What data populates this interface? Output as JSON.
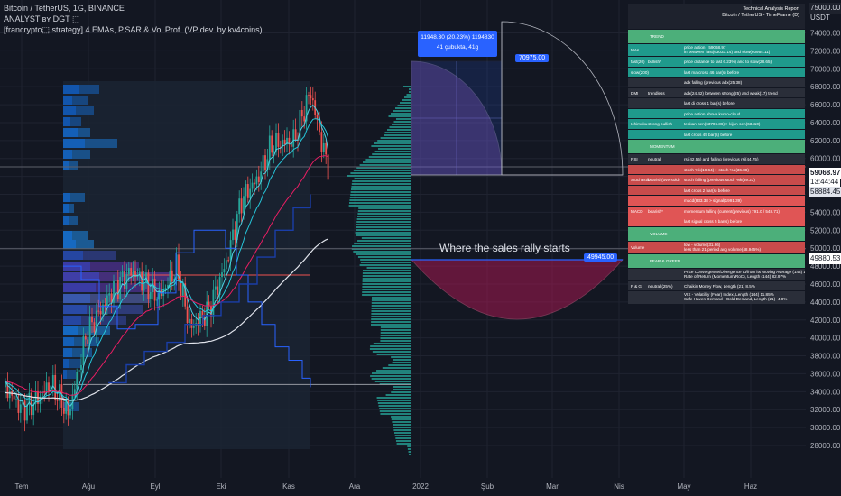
{
  "header": {
    "line1": "Bitcoin / TetherUS, 1G, BINANCE",
    "line2": "ANALYST ʙʏ DGT ⬚",
    "line3": "[francrypto⬚ strategy] 4 EMAs, P.SAR & Vol.Prof. (VP dev. by kv4coins)"
  },
  "axis": {
    "currency": "USDT",
    "y_ticks": [
      "74000.00",
      "72000.00",
      "70000.00",
      "68000.00",
      "66000.00",
      "64000.00",
      "62000.00",
      "60000.00",
      "58000.00",
      "56000.00",
      "54000.00",
      "52000.00",
      "50000.00",
      "48000.00",
      "46000.00",
      "44000.00",
      "42000.00",
      "40000.00",
      "38000.00",
      "36000.00",
      "34000.00",
      "32000.00",
      "30000.00",
      "28000.00"
    ],
    "x_ticks": [
      "Tem",
      "Ağu",
      "Eyl",
      "Eki",
      "Kas",
      "Ara",
      "2022",
      "Şub",
      "Mar",
      "Nis",
      "May",
      "Haz"
    ]
  },
  "price_tags": {
    "last_price": "59068.97",
    "countdown": "13:44:44",
    "ema_value": "58884.45",
    "level_value": "49880.53",
    "top_tag": "75000.00"
  },
  "measure_box": {
    "line1": "11948.30 (20.23%) 1194830",
    "line2": "41 çubukta, 41g"
  },
  "labels": {
    "target": "70975.00",
    "level": "49945.00",
    "annotation": "Where the sales rally starts"
  },
  "colors": {
    "bg": "#131722",
    "up": "#26a69a",
    "down": "#ef5350",
    "profile": "#26a69a",
    "ema_white": "#e0e3eb",
    "ema_pink": "#e91e63",
    "ema_cyan": "#4dd0e1",
    "sar_blue": "#2962ff"
  },
  "chart_data": {
    "type": "candlestick",
    "symbol": "Bitcoin / TetherUS",
    "interval": "1G",
    "ylim": [
      28000,
      76000
    ],
    "points": [
      {
        "x": "Tem",
        "y": 34500
      },
      {
        "x": "Ağu",
        "y": 40500
      },
      {
        "x": "Eyl",
        "y": 47000
      },
      {
        "x": "Eki",
        "y": 43000
      },
      {
        "x": "Kas",
        "y": 62000
      },
      {
        "x": "Kas",
        "y": 67500
      },
      {
        "x": "Kas",
        "y": 59068.97
      }
    ],
    "levels": [
      70975.0,
      49945.0
    ]
  },
  "report": {
    "title_line1": "Technical Analysis Report",
    "title_line2": "Bitcoin / TetherUS - TimeFrame (D)",
    "rows": [
      {
        "c1": "",
        "c2": "TREND",
        "c3": "",
        "color": "#4caf7a"
      },
      {
        "c1": "MAs",
        "c2": "",
        "c3": "price action : 59068.97",
        "c3b": "in between 'fast(63033.14) and slow(60954.11)",
        "color": "#1f9a8c"
      },
      {
        "c1": "fast(20)",
        "c2": "bullish*",
        "c3": "price distance to fast 6.23%) and to slow(28.65)",
        "color": "#1f9a8c"
      },
      {
        "c1": "slow(200)",
        "c2": "",
        "c3": "last ma cross 46 bar(s) before",
        "color": "#1f9a8c"
      },
      {
        "c1": "",
        "c2": "",
        "c3": "adx falling (previous adx(25.38)",
        "color": "#2a2e39"
      },
      {
        "c1": "DMI",
        "c2": "trendless",
        "c3": "adx(24.42) between strong(25) and weak(17) trend",
        "color": "#2a2e39"
      },
      {
        "c1": "",
        "c2": "",
        "c3": "last di cross 1 bar(s) before",
        "color": "#2a2e39"
      },
      {
        "c1": "",
        "c2": "",
        "c3": "price action above kumo-cloud",
        "color": "#1f9a8c"
      },
      {
        "c1": "Ichimoku",
        "c2": "strong bullish",
        "c3": "tenkan-sen(63706.36) > kijun-sen(63410)",
        "color": "#1f9a8c"
      },
      {
        "c1": "",
        "c2": "",
        "c3": "last cross 45 bar(s) before",
        "color": "#1f9a8c"
      },
      {
        "c1": "",
        "c2": "MOMENTUM",
        "c3": "",
        "color": "#4caf7a"
      },
      {
        "c1": "RSI",
        "c2": "neutral",
        "c3": "rsi(42.55) and falling (previous rsi(44.75)",
        "color": "#2a2e39"
      },
      {
        "c1": "",
        "c2": "",
        "c3": "stoch %k(19.64) > stoch %d(36.88)",
        "color": "#c84b4b"
      },
      {
        "c1": "Stochastic",
        "c2": "bearish(oversold)",
        "c3": "stoch falling (previous stoch %k(39.23)",
        "color": "#c84b4b"
      },
      {
        "c1": "",
        "c2": "",
        "c3": "last cross 2 bar(s) before",
        "color": "#c84b4b"
      },
      {
        "c1": "",
        "c2": "",
        "c3": "macd(833.38 > signal(1991.39)",
        "color": "#e05555"
      },
      {
        "c1": "MACD",
        "c2": "bearish*",
        "c3": "momentum falling (current(previous) 791.0 / 548.71)",
        "color": "#e05555"
      },
      {
        "c1": "",
        "c2": "",
        "c3": "last signal cross 5 bar(s) before",
        "color": "#e05555"
      },
      {
        "c1": "",
        "c2": "VOLUME",
        "c3": "",
        "color": "#4caf7a"
      },
      {
        "c1": "Volume",
        "c2": "",
        "c3": "low - volume(31.66)",
        "c3b": "less than 21-period avg volume(48.945%)",
        "color": "#c84b4b"
      },
      {
        "c1": "",
        "c2": "FEAR & GREED",
        "c3": "",
        "color": "#4caf7a"
      },
      {
        "c1": "",
        "c2": "",
        "c3": "Price Convergence/Divergence to/from its Moving Average (144) 14.62%",
        "c3b": "Rate of Return (Momentum/RoC), Length (144) 82.97%",
        "color": "#2a2e39"
      },
      {
        "c1": "F & G",
        "c2": "neutral (25%)",
        "c3": "Chaikin Money Flow, Length (21) 8.5%",
        "color": "#2a2e39"
      },
      {
        "c1": "",
        "c2": "",
        "c3": "VIX - Volatility (Fear) Index, Length (144) 11.85%",
        "c3b": "Safe Haven Demand - Gold Demand, Length (21) -4.8%",
        "color": "#2a2e39"
      }
    ]
  }
}
